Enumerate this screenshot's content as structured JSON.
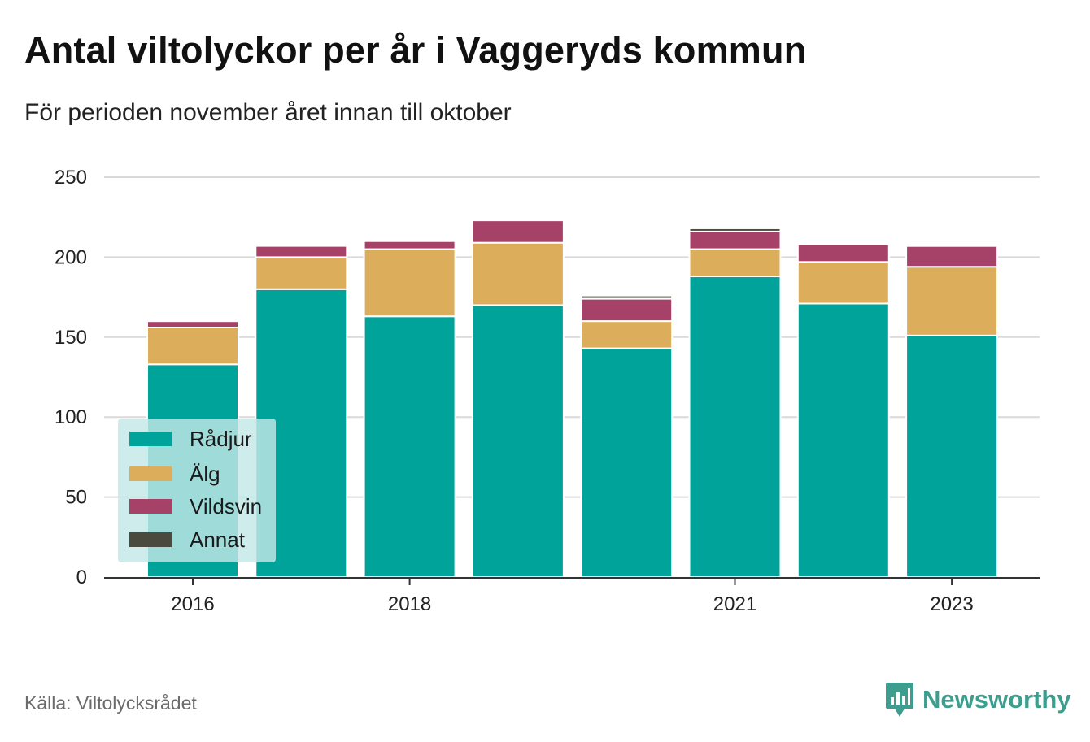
{
  "title": "Antal viltolyckor per år i Vaggeryds kommun",
  "subtitle": "För perioden november året innan till oktober",
  "source": "Källa: Viltolycksrådet",
  "brand": {
    "name": "Newsworthy",
    "icon": "newsworthy-logo-icon"
  },
  "chart_data": {
    "type": "bar",
    "stacked": true,
    "categories": [
      "2016",
      "2017",
      "2018",
      "2019",
      "2020",
      "2021",
      "2022",
      "2023"
    ],
    "x_tick_labels": [
      "2016",
      "2018",
      "2021",
      "2023"
    ],
    "ylim": [
      0,
      250
    ],
    "yticks": [
      0,
      50,
      100,
      150,
      200,
      250
    ],
    "grid": true,
    "legend_position": "bottom-left",
    "series": [
      {
        "name": "Rådjur",
        "color": "#00a39a",
        "values": [
          133,
          180,
          163,
          170,
          143,
          188,
          171,
          151
        ]
      },
      {
        "name": "Älg",
        "color": "#dcae5c",
        "values": [
          23,
          20,
          42,
          39,
          17,
          17,
          26,
          43
        ]
      },
      {
        "name": "Vildsvin",
        "color": "#a64167",
        "values": [
          4,
          7,
          5,
          14,
          14,
          11,
          11,
          13
        ]
      },
      {
        "name": "Annat",
        "color": "#4b4a3e",
        "values": [
          1,
          0,
          0,
          0,
          2,
          2,
          0,
          1
        ]
      }
    ]
  }
}
